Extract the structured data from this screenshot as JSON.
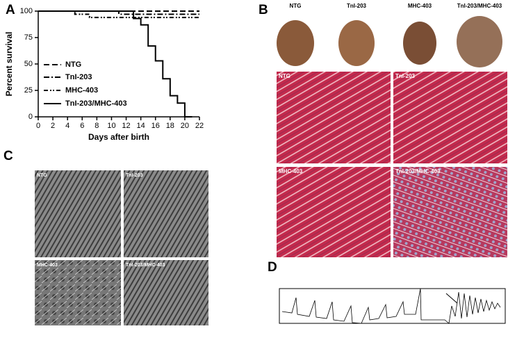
{
  "chart_data": {
    "type": "line",
    "xlabel": "Days after birth",
    "ylabel": "Percent survival",
    "xlim": [
      0,
      22
    ],
    "xticks": [
      0,
      2,
      4,
      6,
      8,
      10,
      12,
      14,
      16,
      18,
      20,
      22
    ],
    "ylim": [
      0,
      100
    ],
    "yticks": [
      0,
      25,
      50,
      75,
      100
    ],
    "legend": "lower-left",
    "series": [
      {
        "name": "NTG",
        "color": "#000000",
        "line_style": "dashed",
        "x": [
          0,
          22
        ],
        "values": [
          100,
          100
        ]
      },
      {
        "name": "TnI-203",
        "color": "#000000",
        "line_style": "dashdot",
        "x": [
          0,
          11,
          11,
          22
        ],
        "values": [
          100,
          100,
          97,
          97
        ]
      },
      {
        "name": "MHC-403",
        "color": "#000000",
        "line_style": "dashdotdot",
        "x": [
          0,
          5,
          5,
          7,
          7,
          22
        ],
        "values": [
          100,
          100,
          97,
          97,
          94,
          94
        ]
      },
      {
        "name": "TnI-203/MHC-403",
        "color": "#000000",
        "line_style": "solid",
        "x": [
          0,
          13,
          13,
          14,
          14,
          15,
          15,
          16,
          16,
          17,
          17,
          18,
          18,
          19,
          19,
          20,
          20,
          21,
          21
        ],
        "values": [
          100,
          100,
          93,
          93,
          87,
          87,
          67,
          67,
          53,
          53,
          36,
          36,
          20,
          20,
          13,
          13,
          0,
          0,
          0
        ]
      }
    ]
  },
  "figure": {
    "panel_labels": [
      "A",
      "B",
      "C",
      "D"
    ],
    "hearts": [
      "NTG",
      "TnI-203",
      "MHC-403",
      "TnI-203/MHC-403"
    ],
    "histology": [
      "NTG",
      "TnI-203",
      "MHC-403",
      "TnI-203/MHC-403"
    ],
    "em": [
      "NTG",
      "TnI-203",
      "MHC-403",
      "TnI-203/MHC-403"
    ]
  }
}
